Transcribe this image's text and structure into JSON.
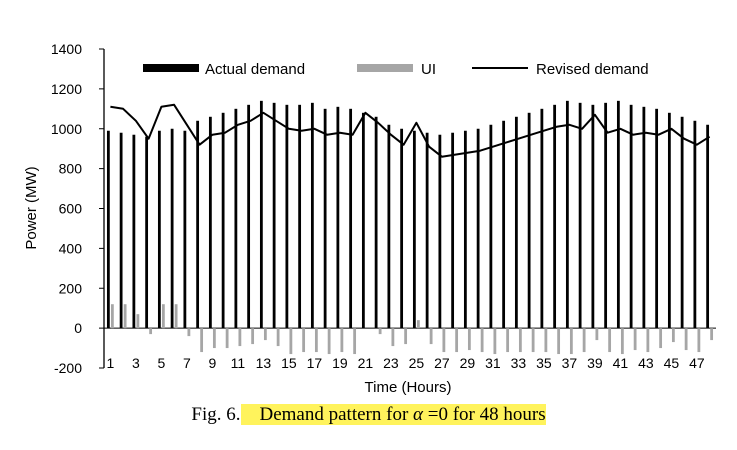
{
  "caption": {
    "prefix": "Fig. 6.",
    "text": "Demand pattern for",
    "symbol": "α",
    "suffix": "=0 for 48 hours",
    "highlight_color": "#fff35c"
  },
  "chart_data": {
    "type": "bar",
    "xlabel": "Time (Hours)",
    "ylabel": "Power (MW)",
    "ylim": [
      -200,
      1400
    ],
    "yticks": [
      -200,
      0,
      200,
      400,
      600,
      800,
      1000,
      1200,
      1400
    ],
    "xtick_labels": [
      "1",
      "3",
      "5",
      "7",
      "9",
      "11",
      "13",
      "15",
      "17",
      "19",
      "21",
      "23",
      "25",
      "27",
      "29",
      "31",
      "33",
      "35",
      "37",
      "39",
      "41",
      "43",
      "45",
      "47"
    ],
    "x": [
      1,
      2,
      3,
      4,
      5,
      6,
      7,
      8,
      9,
      10,
      11,
      12,
      13,
      14,
      15,
      16,
      17,
      18,
      19,
      20,
      21,
      22,
      23,
      24,
      25,
      26,
      27,
      28,
      29,
      30,
      31,
      32,
      33,
      34,
      35,
      36,
      37,
      38,
      39,
      40,
      41,
      42,
      43,
      44,
      45,
      46,
      47,
      48
    ],
    "grid": false,
    "legend_position": "top",
    "series": [
      {
        "name": "Actual demand",
        "kind": "bar",
        "color": "#000000",
        "values": [
          990,
          980,
          970,
          960,
          990,
          1000,
          990,
          1040,
          1060,
          1080,
          1100,
          1120,
          1140,
          1130,
          1120,
          1120,
          1130,
          1100,
          1110,
          1100,
          1080,
          1060,
          1020,
          1000,
          990,
          980,
          970,
          980,
          990,
          1000,
          1020,
          1040,
          1060,
          1080,
          1100,
          1120,
          1140,
          1130,
          1120,
          1130,
          1140,
          1120,
          1110,
          1100,
          1080,
          1060,
          1040,
          1020
        ]
      },
      {
        "name": "UI",
        "kind": "bar",
        "color": "#a6a6a6",
        "values": [
          120,
          120,
          70,
          -30,
          120,
          120,
          -40,
          -120,
          -100,
          -100,
          -90,
          -80,
          -60,
          -90,
          -130,
          -120,
          -120,
          -130,
          -120,
          -130,
          0,
          -30,
          -90,
          -80,
          40,
          -80,
          -120,
          -120,
          -110,
          -120,
          -130,
          -120,
          -120,
          -120,
          -120,
          -130,
          -130,
          -120,
          -60,
          -120,
          -130,
          -110,
          -120,
          -100,
          -70,
          -110,
          -120,
          -60
        ]
      },
      {
        "name": "Revised demand",
        "kind": "line",
        "color": "#000000",
        "values": [
          1110,
          1100,
          1040,
          950,
          1110,
          1120,
          1020,
          920,
          970,
          980,
          1020,
          1040,
          1080,
          1040,
          1000,
          990,
          1000,
          970,
          980,
          970,
          1080,
          1030,
          970,
          920,
          1030,
          910,
          860,
          870,
          880,
          890,
          910,
          930,
          950,
          970,
          990,
          1010,
          1020,
          1000,
          1070,
          980,
          1000,
          970,
          980,
          970,
          1000,
          950,
          920,
          960
        ]
      }
    ]
  }
}
